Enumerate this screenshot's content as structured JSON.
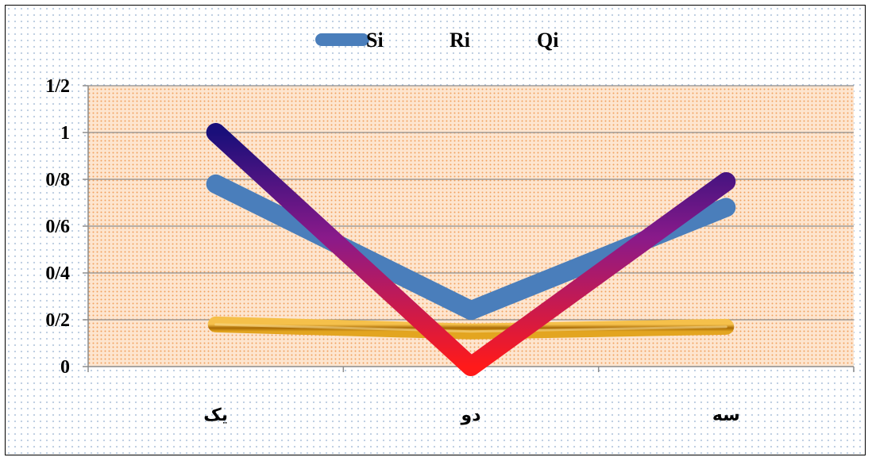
{
  "chart_data": {
    "type": "line",
    "categories": [
      "یک",
      "دو",
      "سه"
    ],
    "series": [
      {
        "name": "Si",
        "values": [
          0.78,
          0.24,
          0.68
        ],
        "color": "#4a7ebb"
      },
      {
        "name": "Ri",
        "values": [
          0.18,
          0.15,
          0.17
        ],
        "color": "#c8900f"
      },
      {
        "name": "Qi",
        "values": [
          1.0,
          0.0,
          0.79
        ],
        "color_top": "#1a0f7a",
        "color_mid": "#8a1a8a",
        "color_bottom": "#ff1a1a"
      }
    ],
    "ylim": [
      0,
      1.2
    ],
    "yticks": [
      "0",
      "0/2",
      "0/4",
      "0/6",
      "0/8",
      "1",
      "1/2"
    ],
    "legend_position": "top",
    "grid": true,
    "plot_background": "#fbd8b8",
    "title": "",
    "xlabel": "",
    "ylabel": ""
  }
}
